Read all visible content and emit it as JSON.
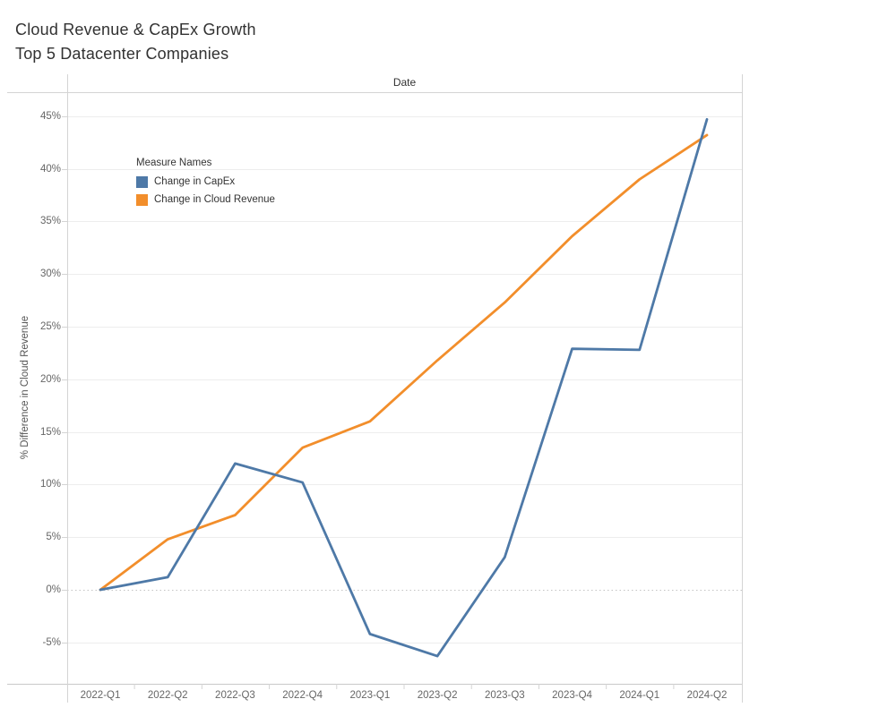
{
  "title": {
    "line1": "Cloud Revenue & CapEx Growth",
    "line2": "Top 5 Datacenter Companies"
  },
  "axis": {
    "x_title": "Date",
    "y_title": "% Difference in Cloud Revenue"
  },
  "legend": {
    "title": "Measure Names",
    "items": [
      {
        "label": "Change in CapEx",
        "color": "#4e79a7"
      },
      {
        "label": "Change in Cloud Revenue",
        "color": "#f28e2b"
      }
    ]
  },
  "colors": {
    "capex_blue": "#4e79a7",
    "revenue_orange": "#f28e2b",
    "gridline": "#ededed",
    "zero_line": "#c4c4c4",
    "frame_line": "#d4d4d4",
    "axis_bottom_line": "#c9c9c9",
    "tick_mark": "#d4d4d4"
  },
  "chart_data": {
    "type": "line",
    "title": "Cloud Revenue & CapEx Growth — Top 5 Datacenter Companies",
    "xlabel": "Date",
    "ylabel": "% Difference in Cloud Revenue",
    "categories": [
      "2022-Q1",
      "2022-Q2",
      "2022-Q3",
      "2022-Q4",
      "2023-Q1",
      "2023-Q2",
      "2023-Q3",
      "2023-Q4",
      "2024-Q1",
      "2024-Q2"
    ],
    "series": [
      {
        "name": "Change in CapEx",
        "color": "#4e79a7",
        "values": [
          0,
          1.2,
          12.0,
          10.2,
          -4.2,
          -6.3,
          3.1,
          22.9,
          22.8,
          44.7
        ]
      },
      {
        "name": "Change in Cloud Revenue",
        "color": "#f28e2b",
        "values": [
          0,
          4.8,
          7.1,
          13.5,
          16.0,
          21.8,
          27.3,
          33.6,
          39.0,
          43.2
        ]
      }
    ],
    "yticks": [
      -5,
      0,
      5,
      10,
      15,
      20,
      25,
      30,
      35,
      40,
      45
    ],
    "ytick_format": "percent",
    "ylim": [
      -8.93,
      47.28
    ],
    "grid": true,
    "zero_line_style": "dotted",
    "legend_position": "inside-top-left"
  }
}
